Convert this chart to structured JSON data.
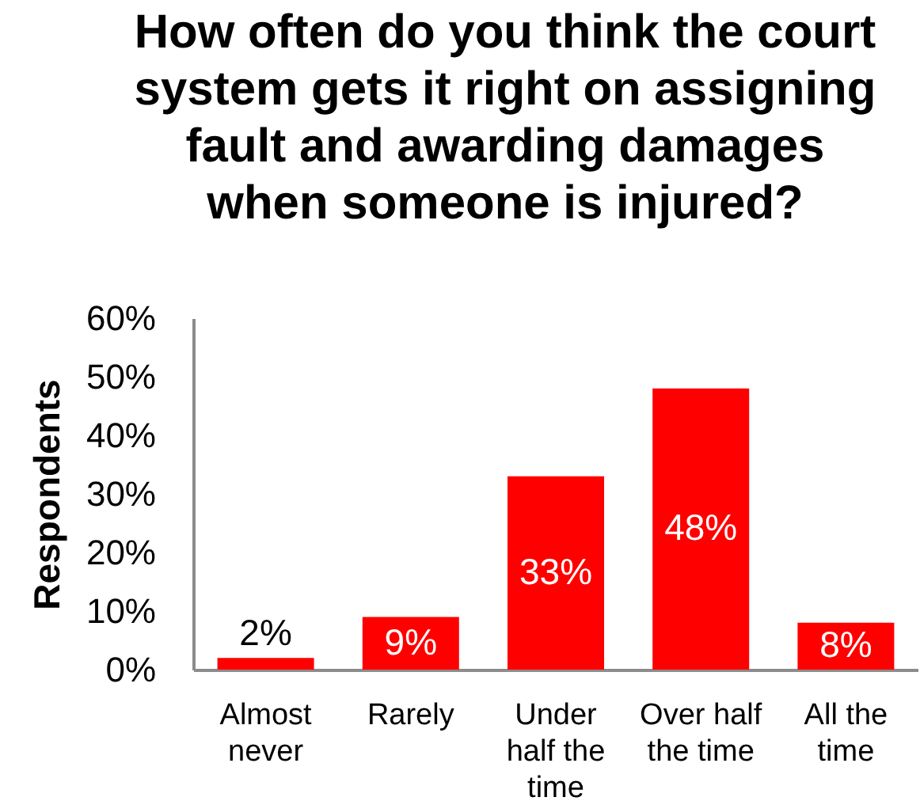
{
  "chart_data": {
    "type": "bar",
    "title": "How often do you think the court system gets it right on assigning fault and awarding damages when someone is injured?",
    "ylabel": "Respondents",
    "categories": [
      "Almost never",
      "Rarely",
      "Under half the time",
      "Over half the time",
      "All the time"
    ],
    "values": [
      2,
      9,
      33,
      48,
      8
    ],
    "color": "#ff0000",
    "value_labels": [
      "2%",
      "9%",
      "33%",
      "48%",
      "8%"
    ],
    "ylim": [
      0,
      60
    ],
    "yticks": [
      {
        "value": 0,
        "label": "0%"
      },
      {
        "value": 10,
        "label": "10%"
      },
      {
        "value": 20,
        "label": "20%"
      },
      {
        "value": 30,
        "label": "30%"
      },
      {
        "value": 40,
        "label": "40%"
      },
      {
        "value": 50,
        "label": "50%"
      },
      {
        "value": 60,
        "label": "60%"
      }
    ],
    "grid": false
  }
}
